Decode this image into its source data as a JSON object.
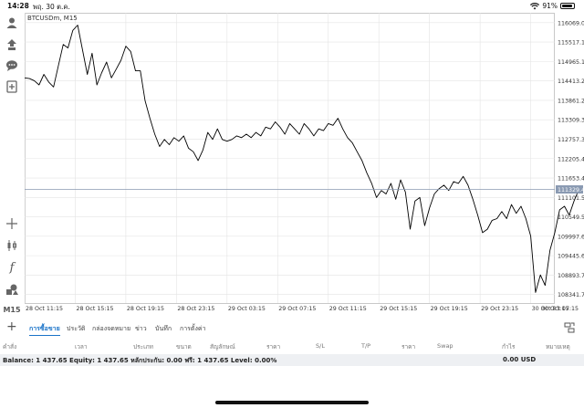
{
  "status_bar": {
    "time": "14:28",
    "date": "พฤ. 30 ต.ค.",
    "battery_pct": "91%",
    "battery_level": 0.91
  },
  "chart": {
    "title": "BTCUSDm, M15",
    "current_price": "111329.46",
    "colors": {
      "line": "#000000",
      "price_tag": "#8a9ab2",
      "grid": "#e4e4e4"
    }
  },
  "left_toolbar": {
    "items": [
      {
        "name": "account-icon"
      },
      {
        "name": "trade-icon"
      },
      {
        "name": "chat-icon"
      },
      {
        "name": "new-order-icon"
      },
      {
        "name": "crosshair-icon"
      },
      {
        "name": "candlestick-icon"
      },
      {
        "name": "indicators-icon"
      },
      {
        "name": "objects-icon"
      }
    ],
    "timeframe": "M15"
  },
  "bottom_tabs": {
    "items": [
      {
        "label": "การซื้อขาย",
        "active": true
      },
      {
        "label": "ประวัติ",
        "active": false
      },
      {
        "label": "กล่องจดหมาย",
        "active": false
      },
      {
        "label": "ข่าว",
        "active": false
      },
      {
        "label": "บันทึก",
        "active": false
      },
      {
        "label": "การตั้งค่า",
        "active": false
      }
    ]
  },
  "columns": [
    "คำสั่ง",
    "เวลา",
    "ประเภท",
    "ขนาด",
    "สัญลักษณ์",
    "ราคา",
    "S/L",
    "T/P",
    "ราคา",
    "Swap",
    "กำไร",
    "หมายเหตุ"
  ],
  "balance": {
    "text": "Balance: 1 437.65 Equity: 1 437.65 หลักประกัน: 0.00 ฟรี: 1 437.65 Level: 0.00%",
    "profit": "0.00  USD"
  },
  "chart_data": {
    "type": "line",
    "title": "BTCUSDm, M15",
    "x_tick_labels": [
      "28 Oct 11:15",
      "28 Oct 15:15",
      "28 Oct 19:15",
      "28 Oct 23:15",
      "29 Oct 03:15",
      "29 Oct 07:15",
      "29 Oct 11:15",
      "29 Oct 15:15",
      "29 Oct 19:15",
      "29 Oct 23:15",
      "30 Oct 03:15",
      "30 Oct 07:15"
    ],
    "y_tick_labels": [
      "116069.05",
      "115517.10",
      "114965.15",
      "114413.20",
      "113861.25",
      "113309.30",
      "112757.35",
      "112205.40",
      "111653.45",
      "111101.50",
      "110549.55",
      "109997.60",
      "109445.65",
      "108893.70",
      "108341.75"
    ],
    "ylim": [
      108100,
      116350
    ],
    "grid": true,
    "x_index_range": [
      0,
      110
    ],
    "x_tick_index": [
      0,
      10.5,
      21,
      31.5,
      42,
      52.5,
      63,
      73.5,
      84,
      94.5,
      105,
      115.5
    ],
    "series": [
      {
        "values": [
          114500,
          114480,
          114420,
          114300,
          114600,
          114380,
          114240,
          114850,
          115450,
          115350,
          115850,
          116000,
          115300,
          114600,
          115200,
          114300,
          114650,
          114950,
          114500,
          114750,
          115000,
          115400,
          115250,
          114700,
          114700,
          113850,
          113350,
          112900,
          112550,
          112750,
          112600,
          112800,
          112700,
          112850,
          112500,
          112400,
          112150,
          112450,
          112950,
          112750,
          113050,
          112750,
          112700,
          112750,
          112850,
          112800,
          112900,
          112800,
          112950,
          112850,
          113100,
          113050,
          113250,
          113100,
          112900,
          113200,
          113050,
          112900,
          113200,
          113050,
          112850,
          113050,
          113000,
          113200,
          113150,
          113350,
          113050,
          112800,
          112650,
          112400,
          112150,
          111800,
          111500,
          111100,
          111300,
          111200,
          111500,
          111050,
          111600,
          111250,
          110200,
          111000,
          111100,
          110300,
          110800,
          111200,
          111350,
          111450,
          111300,
          111550,
          111500,
          111700,
          111450,
          111050,
          110600,
          110100,
          110200,
          110450,
          110500,
          110700,
          110500,
          110900,
          110650,
          110850,
          110500,
          110000,
          108400,
          108900,
          108600,
          109600,
          110100,
          110750,
          110850,
          110600,
          111000,
          111330
        ]
      }
    ]
  }
}
